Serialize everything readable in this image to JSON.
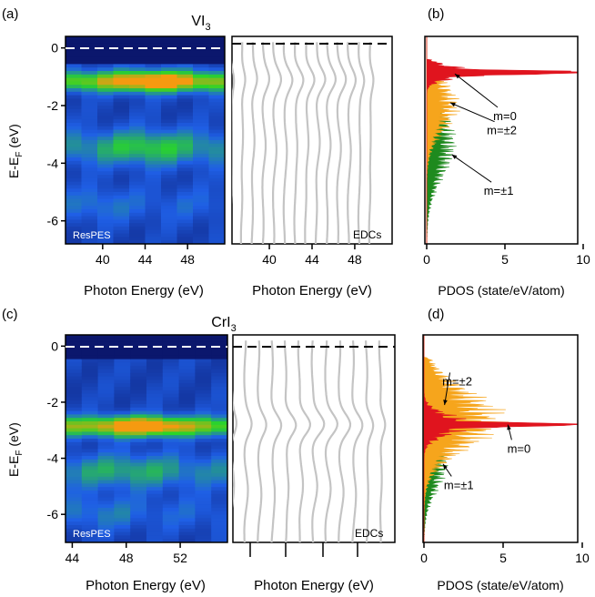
{
  "colors": {
    "edc_line": "#c4c4c4",
    "pdos_red": "#e0141e",
    "pdos_orange": "#f6a51c",
    "pdos_green": "#1e8a1e",
    "map_dark": "#0a1366",
    "map_blue": "#1f5fe6",
    "map_green": "#2ad628",
    "map_orange": "#f59a10"
  },
  "chart_data": [
    {
      "panel": "(a)",
      "type": "heatmap",
      "title": "VI",
      "title_sub": "3",
      "inset_label": "ResPES",
      "xlabel": "Photon Energy (eV)",
      "ylabel_main": "E-E",
      "ylabel_sub": "F",
      "ylabel_tail": " (eV)",
      "xlim": [
        36.5,
        51.5
      ],
      "ylim": [
        -6.8,
        0.4
      ],
      "xticks": [
        40,
        44,
        48
      ],
      "yticks": [
        0,
        -2,
        -4,
        -6
      ],
      "ef_line": 0,
      "columns_x": [
        37,
        38.5,
        40,
        41.5,
        43,
        44.5,
        46,
        47.5,
        49,
        50.5
      ],
      "features": [
        {
          "band": "main",
          "energy": -1.1,
          "center": 44.5,
          "width": 4.0,
          "peak": 1.0
        },
        {
          "band": "secondary",
          "energy": -3.4,
          "center": 44.0,
          "width": 4.0,
          "peak": 0.45
        },
        {
          "band": "deep",
          "energy": -5.4,
          "center": 39.5,
          "width": 2.0,
          "peak": 0.2
        }
      ]
    },
    {
      "panel": "(a)",
      "type": "line",
      "inset_label": "EDCs",
      "xlabel": "Photon Energy (eV)",
      "xlim": [
        36.5,
        51.5
      ],
      "ylim": [
        -6.8,
        0.4
      ],
      "xticks": [
        40,
        44,
        48
      ],
      "ef_line": 0,
      "curve_x": [
        37,
        38,
        39,
        40,
        41,
        42,
        43,
        44,
        45,
        46,
        47,
        48,
        49,
        50
      ],
      "curve_amplitude": [
        0.2,
        0.25,
        0.3,
        0.35,
        0.4,
        0.45,
        0.5,
        0.55,
        0.55,
        0.5,
        0.45,
        0.4,
        0.3,
        0.25
      ]
    },
    {
      "panel": "(b)",
      "type": "line",
      "xlabel": "PDOS (state/eV/atom)",
      "xlim": [
        0,
        10
      ],
      "ylim": [
        -6.8,
        0.4
      ],
      "xticks": [
        0,
        5,
        10
      ],
      "series": [
        {
          "color_key": "pdos_red",
          "center": -0.85,
          "spread": 0.3,
          "peak": 8.8
        },
        {
          "color_key": "pdos_orange",
          "center": -2.0,
          "spread": 1.2,
          "peak": 2.2
        },
        {
          "color_key": "pdos_green",
          "center": -3.3,
          "spread": 1.6,
          "peak": 2.0
        }
      ],
      "annotations": [
        {
          "text": "m=0",
          "at": [
            1.8,
            -0.9
          ],
          "label": [
            5.0,
            -2.5
          ]
        },
        {
          "text": "m=±2",
          "at": [
            1.5,
            -1.9
          ],
          "label": [
            4.8,
            -3.0
          ]
        },
        {
          "text": "m=±1",
          "at": [
            1.6,
            -3.7
          ],
          "label": [
            4.6,
            -5.1
          ]
        }
      ]
    },
    {
      "panel": "(c)",
      "type": "heatmap",
      "title": "CrI",
      "title_sub": "3",
      "inset_label": "ResPES",
      "xlabel": "Photon Energy (eV)",
      "ylabel_main": "E-E",
      "ylabel_sub": "F",
      "ylabel_tail": " (eV)",
      "xlim": [
        43.5,
        55.5
      ],
      "ylim": [
        -7.0,
        0.4
      ],
      "xticks": [
        44,
        48,
        52
      ],
      "yticks": [
        0,
        -2,
        -4,
        -6
      ],
      "ef_line": 0,
      "columns_x": [
        44,
        45.2,
        46.4,
        47.6,
        48.8,
        50,
        51.2,
        52.4,
        53.6,
        54.8
      ],
      "features": [
        {
          "band": "main",
          "energy": -2.8,
          "center": 49.0,
          "width": 3.0,
          "peak": 1.0
        },
        {
          "band": "secondary",
          "energy": -4.4,
          "center": 48.0,
          "width": 4.0,
          "peak": 0.35
        },
        {
          "band": "deep",
          "energy": -5.9,
          "center": 46.0,
          "width": 2.5,
          "peak": 0.2
        }
      ]
    },
    {
      "panel": "(c)",
      "type": "line",
      "inset_label": "EDCs",
      "xlabel": "Photon Energy (eV)",
      "xlim": [
        43.5,
        55.5
      ],
      "ylim": [
        -7.0,
        0.4
      ],
      "ef_line": 0,
      "curve_x": [
        44,
        45,
        46,
        47,
        48,
        49,
        50,
        51,
        52,
        53,
        54,
        55
      ],
      "curve_amplitude": [
        0.25,
        0.3,
        0.35,
        0.45,
        0.55,
        0.6,
        0.6,
        0.55,
        0.5,
        0.45,
        0.35,
        0.3
      ]
    },
    {
      "panel": "(d)",
      "type": "line",
      "xlabel": "PDOS (state/eV/atom)",
      "xlim": [
        0,
        10
      ],
      "ylim": [
        -7.0,
        0.4
      ],
      "xticks": [
        0,
        5,
        10
      ],
      "series": [
        {
          "color_key": "pdos_red",
          "center": -2.8,
          "spread": 0.5,
          "peak": 8.3
        },
        {
          "color_key": "pdos_orange",
          "center": -2.6,
          "spread": 1.4,
          "peak": 5.5
        },
        {
          "color_key": "pdos_green",
          "center": -4.2,
          "spread": 1.3,
          "peak": 1.6
        }
      ],
      "annotations": [
        {
          "text": "m=±2",
          "at": [
            1.3,
            -2.1
          ],
          "label": [
            2.1,
            -1.4
          ]
        },
        {
          "text": "m=0",
          "at": [
            5.3,
            -2.8
          ],
          "label": [
            6.0,
            -3.8
          ]
        },
        {
          "text": "m=±1",
          "at": [
            1.2,
            -4.2
          ],
          "label": [
            2.2,
            -5.1
          ]
        }
      ]
    }
  ]
}
